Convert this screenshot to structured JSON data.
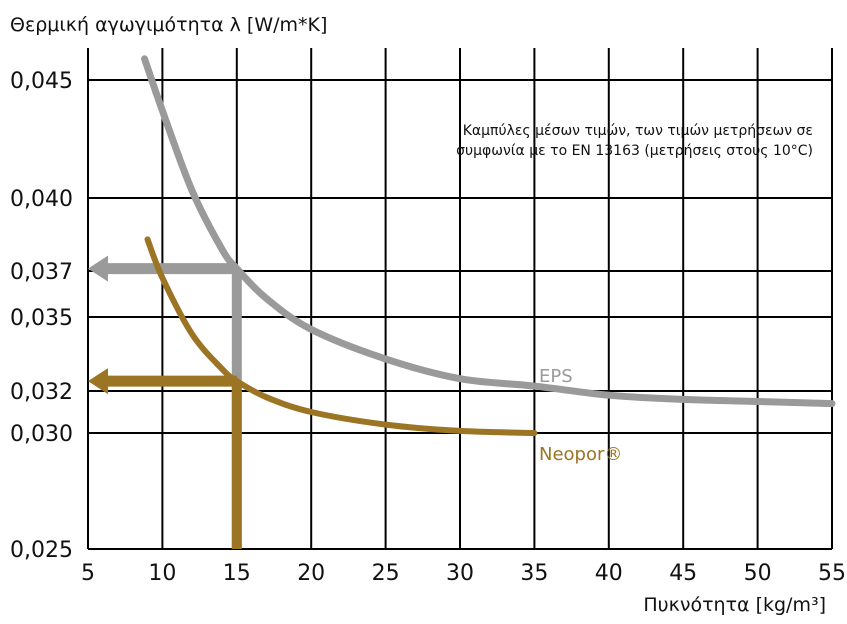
{
  "chart_data": {
    "type": "line",
    "ylabel": "Θερμική αγωγιμότητα λ [W/m*K]",
    "xlabel": "Πυκνότητα [kg/m³]",
    "annotation_lines": [
      "Καμπύλες μέσων τιμών, των τιμών μετρήσεων σε",
      "συμφωνία με το EN 13163 (μετρήσεις στους 10°C)"
    ],
    "xlim": [
      5,
      55
    ],
    "ylim": [
      0.025,
      0.046
    ],
    "x_ticks": [
      5,
      10,
      15,
      20,
      25,
      30,
      35,
      40,
      45,
      50,
      55
    ],
    "y_ticks": [
      0.025,
      0.03,
      0.032,
      0.035,
      0.037,
      0.04,
      0.045
    ],
    "x_tick_labels": [
      "5",
      "10",
      "15",
      "20",
      "25",
      "30",
      "35",
      "40",
      "45",
      "50",
      "55"
    ],
    "y_tick_labels": [
      "0,025",
      "0,030",
      "0,032",
      "0,035",
      "0,037",
      "0,040",
      "0,045"
    ],
    "grid": true,
    "series": [
      {
        "name": "EPS",
        "color": "#9a9a9a",
        "x": [
          8.8,
          10,
          12,
          14,
          15,
          17,
          20,
          25,
          30,
          35,
          40,
          45,
          50,
          55
        ],
        "y": [
          0.0459,
          0.0437,
          0.0403,
          0.0379,
          0.0371,
          0.0358,
          0.0345,
          0.0333,
          0.0325,
          0.0322,
          0.0318,
          0.0316,
          0.0315,
          0.0314
        ]
      },
      {
        "name": "Neopor®",
        "color": "#9b7424",
        "x": [
          9.0,
          10,
          12,
          14,
          15,
          17,
          20,
          25,
          30,
          35
        ],
        "y": [
          0.0383,
          0.0367,
          0.0343,
          0.0329,
          0.0324,
          0.0317,
          0.031,
          0.0304,
          0.0301,
          0.03
        ]
      }
    ],
    "reference_markers": [
      {
        "series": "EPS",
        "color": "#9a9a9a",
        "x": 15,
        "y": 0.0371,
        "arrow_to_x": 5
      },
      {
        "series": "Neopor®",
        "color": "#9b7424",
        "x": 15,
        "y": 0.0324,
        "arrow_to_x": 5
      }
    ]
  }
}
